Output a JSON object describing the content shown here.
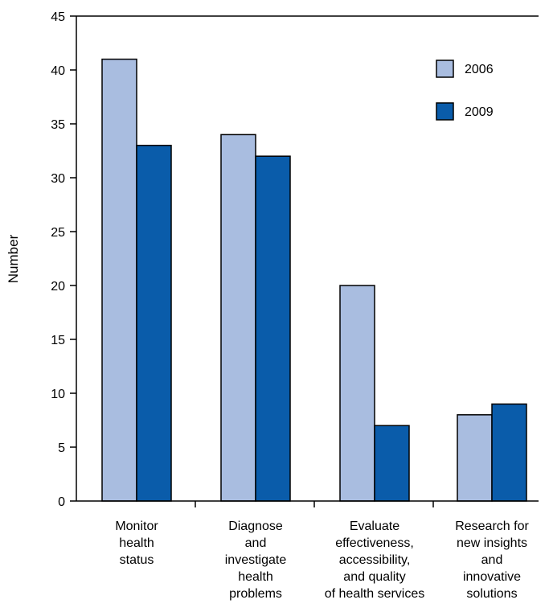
{
  "chart_data": {
    "type": "bar",
    "title": "",
    "xlabel": "",
    "ylabel": "Number",
    "ylim": [
      0,
      45
    ],
    "ytick_step": 5,
    "yticks": [
      "0",
      "5",
      "10",
      "15",
      "20",
      "25",
      "30",
      "35",
      "40",
      "45"
    ],
    "grid": false,
    "legend_position": "top-right",
    "categories": [
      [
        "Monitor",
        "health",
        "status"
      ],
      [
        "Diagnose",
        "and",
        "investigate",
        "health",
        "problems"
      ],
      [
        "Evaluate",
        "effectiveness,",
        "accessibility,",
        "and quality",
        "of health services"
      ],
      [
        "Research for",
        "new insights",
        "and",
        "innovative",
        "solutions"
      ]
    ],
    "series": [
      {
        "name": "2006",
        "color": "#a9bde0",
        "values": [
          41,
          34,
          20,
          8
        ]
      },
      {
        "name": "2009",
        "color": "#0a5caa",
        "values": [
          33,
          32,
          7,
          9
        ]
      }
    ]
  }
}
